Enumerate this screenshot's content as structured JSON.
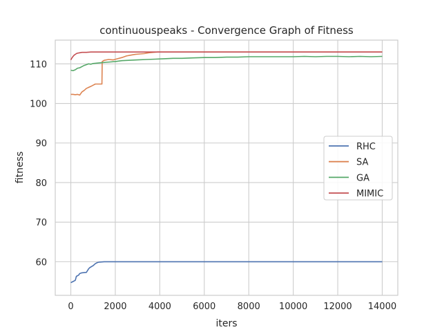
{
  "chart_data": {
    "type": "line",
    "title": "continuouspeaks - Convergence Graph of Fitness",
    "xlabel": "iters",
    "ylabel": "fitness",
    "xlim": [
      -700,
      14700
    ],
    "ylim": [
      51.5,
      116
    ],
    "xticks": [
      0,
      2000,
      4000,
      6000,
      8000,
      10000,
      12000,
      14000
    ],
    "xtick_labels": [
      "0",
      "2000",
      "4000",
      "6000",
      "8000",
      "10000",
      "12000",
      "14000"
    ],
    "yticks": [
      60,
      70,
      80,
      90,
      100,
      110
    ],
    "ytick_labels": [
      "60",
      "70",
      "80",
      "90",
      "100",
      "110"
    ],
    "grid": true,
    "legend_position": "center-right",
    "series": [
      {
        "name": "RHC",
        "color": "#4c72b0",
        "x": [
          0,
          100,
          200,
          250,
          350,
          400,
          500,
          700,
          800,
          850,
          1000,
          1100,
          1200,
          1300,
          1500,
          2000,
          4000,
          6000,
          8000,
          10000,
          12000,
          14000
        ],
        "y": [
          54.7,
          55.0,
          55.3,
          56.3,
          56.6,
          57.0,
          57.2,
          57.3,
          58.2,
          58.5,
          59.0,
          59.5,
          59.8,
          59.9,
          60.0,
          60.0,
          60.0,
          60.0,
          60.0,
          60.0,
          60.0,
          60.0
        ]
      },
      {
        "name": "SA",
        "color": "#dd8452",
        "x": [
          0,
          100,
          200,
          300,
          400,
          500,
          600,
          700,
          900,
          1000,
          1100,
          1200,
          1400,
          1410,
          1500,
          1700,
          1900,
          2100,
          2300,
          2500,
          2700,
          2900,
          3100,
          3300,
          3500,
          3700,
          3900,
          4200,
          6000,
          8000,
          10000,
          12000,
          14000
        ],
        "y": [
          102.3,
          102.3,
          102.2,
          102.3,
          102.1,
          102.9,
          103.3,
          103.8,
          104.3,
          104.6,
          104.9,
          104.9,
          104.9,
          110.6,
          110.9,
          111.1,
          111.0,
          111.3,
          111.6,
          112.0,
          112.2,
          112.4,
          112.5,
          112.6,
          112.8,
          112.9,
          113.0,
          113.0,
          113.0,
          113.0,
          113.0,
          113.0,
          113.0
        ]
      },
      {
        "name": "GA",
        "color": "#55a868",
        "x": [
          0,
          100,
          200,
          300,
          400,
          500,
          600,
          700,
          800,
          900,
          1000,
          1200,
          1400,
          1600,
          1800,
          2000,
          2300,
          2600,
          3000,
          3400,
          3800,
          4200,
          4600,
          5000,
          5500,
          6000,
          6500,
          7000,
          7500,
          8000,
          8500,
          9000,
          9500,
          10000,
          10500,
          11000,
          11500,
          12000,
          12500,
          13000,
          13500,
          14000
        ],
        "y": [
          108.4,
          108.3,
          108.5,
          108.9,
          109.0,
          109.3,
          109.6,
          109.8,
          110.0,
          109.9,
          110.1,
          110.2,
          110.3,
          110.4,
          110.5,
          110.6,
          110.8,
          110.9,
          111.0,
          111.1,
          111.2,
          111.3,
          111.4,
          111.4,
          111.5,
          111.6,
          111.6,
          111.7,
          111.7,
          111.8,
          111.8,
          111.8,
          111.8,
          111.8,
          111.9,
          111.8,
          111.9,
          111.9,
          111.8,
          111.9,
          111.8,
          111.9
        ]
      },
      {
        "name": "MIMIC",
        "color": "#c44e52",
        "x": [
          0,
          50,
          100,
          150,
          200,
          250,
          300,
          400,
          500,
          700,
          900,
          1000,
          1200,
          1500,
          2000,
          4000,
          6000,
          8000,
          10000,
          12000,
          14000
        ],
        "y": [
          111.0,
          111.5,
          111.9,
          112.2,
          112.4,
          112.6,
          112.7,
          112.8,
          112.9,
          112.9,
          113.0,
          113.0,
          113.0,
          113.0,
          113.0,
          113.0,
          113.0,
          113.0,
          113.0,
          113.0,
          113.0
        ]
      }
    ]
  }
}
